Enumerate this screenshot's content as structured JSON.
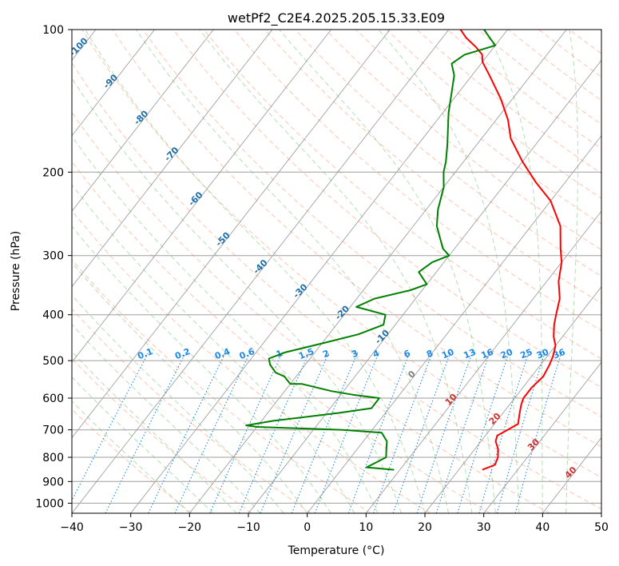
{
  "chart_data": {
    "type": "line",
    "title": "wetPf2_C2E4.2025.205.15.33.E09",
    "xlabel": "Temperature (°C)",
    "ylabel": "Pressure (hPa)",
    "xlim": [
      -40,
      50
    ],
    "ylim": [
      1050,
      100
    ],
    "y_scale": "log",
    "skew": "skew-T log-p",
    "grid": true,
    "x_ticks": [
      -40,
      -30,
      -20,
      -10,
      0,
      10,
      20,
      30,
      40,
      50
    ],
    "y_ticks": [
      100,
      200,
      300,
      400,
      500,
      600,
      700,
      800,
      900,
      1000
    ],
    "colors": {
      "temperature": "#ff0000",
      "dewpoint": "#008000",
      "dry_adiabats": "#ff7f50",
      "moist_adiabats": "#2ca02c",
      "mixing_ratio": "#1e88e5",
      "isotherms": "#808080",
      "moist_adiabat_labels": "#1f6fa8",
      "dry_adiabat_labels": "#d32f2f"
    },
    "series": [
      {
        "key": "temperature",
        "points": [
          [
            24,
            850
          ],
          [
            25.5,
            830
          ],
          [
            25,
            800
          ],
          [
            24,
            770
          ],
          [
            22.5,
            740
          ],
          [
            22,
            720
          ],
          [
            23,
            700
          ],
          [
            24,
            680
          ],
          [
            23,
            650
          ],
          [
            22,
            620
          ],
          [
            21.5,
            600
          ],
          [
            21.5,
            570
          ],
          [
            22,
            540
          ],
          [
            21.5,
            510
          ],
          [
            21,
            490
          ],
          [
            20,
            465
          ],
          [
            18.5,
            445
          ],
          [
            17,
            420
          ],
          [
            16,
            400
          ],
          [
            14.5,
            370
          ],
          [
            12,
            340
          ],
          [
            10,
            310
          ],
          [
            8,
            290
          ],
          [
            5,
            260
          ],
          [
            0,
            230
          ],
          [
            -5,
            210
          ],
          [
            -10,
            190
          ],
          [
            -15,
            170
          ],
          [
            -18,
            155
          ],
          [
            -22,
            140
          ],
          [
            -27,
            125
          ],
          [
            -30,
            117
          ],
          [
            -31,
            113
          ],
          [
            -33,
            109
          ],
          [
            -36,
            104
          ],
          [
            -38,
            100
          ]
        ]
      },
      {
        "key": "dewpoint",
        "points": [
          [
            9,
            850
          ],
          [
            4,
            840
          ],
          [
            5,
            820
          ],
          [
            6,
            800
          ],
          [
            5,
            770
          ],
          [
            4,
            740
          ],
          [
            2,
            710
          ],
          [
            -5,
            700
          ],
          [
            -20,
            690
          ],
          [
            -22,
            685
          ],
          [
            -18,
            670
          ],
          [
            -8,
            645
          ],
          [
            -3,
            630
          ],
          [
            -3,
            600
          ],
          [
            -8,
            590
          ],
          [
            -12,
            580
          ],
          [
            -18,
            560
          ],
          [
            -20,
            560
          ],
          [
            -21,
            550
          ],
          [
            -22,
            540
          ],
          [
            -24,
            530
          ],
          [
            -26,
            510
          ],
          [
            -27,
            495
          ],
          [
            -25,
            480
          ],
          [
            -20,
            460
          ],
          [
            -15,
            440
          ],
          [
            -12,
            420
          ],
          [
            -13,
            400
          ],
          [
            -19,
            385
          ],
          [
            -17,
            370
          ],
          [
            -12,
            355
          ],
          [
            -10,
            345
          ],
          [
            -13,
            325
          ],
          [
            -12,
            310
          ],
          [
            -10,
            300
          ],
          [
            -12,
            290
          ],
          [
            -16,
            260
          ],
          [
            -18,
            240
          ],
          [
            -20,
            215
          ],
          [
            -22,
            200
          ],
          [
            -23,
            190
          ],
          [
            -25,
            175
          ],
          [
            -29,
            150
          ],
          [
            -33,
            125
          ],
          [
            -35,
            118
          ],
          [
            -34,
            113
          ],
          [
            -30,
            108
          ],
          [
            -33,
            102
          ],
          [
            -34,
            100
          ]
        ]
      }
    ],
    "mixing_ratio_labels": [
      "0.1",
      "0.2",
      "0.4",
      "0.6",
      "1",
      "1.5",
      "2",
      "3",
      "4",
      "6",
      "8",
      "10",
      "13",
      "16",
      "20",
      "25",
      "30",
      "36"
    ],
    "moist_adiabat_labels": [
      "-100",
      "-90",
      "-80",
      "-70",
      "-60",
      "-50",
      "-40",
      "-30",
      "-20",
      "-10",
      "0"
    ],
    "dry_adiabat_labels": [
      "10",
      "20",
      "30",
      "40"
    ]
  }
}
